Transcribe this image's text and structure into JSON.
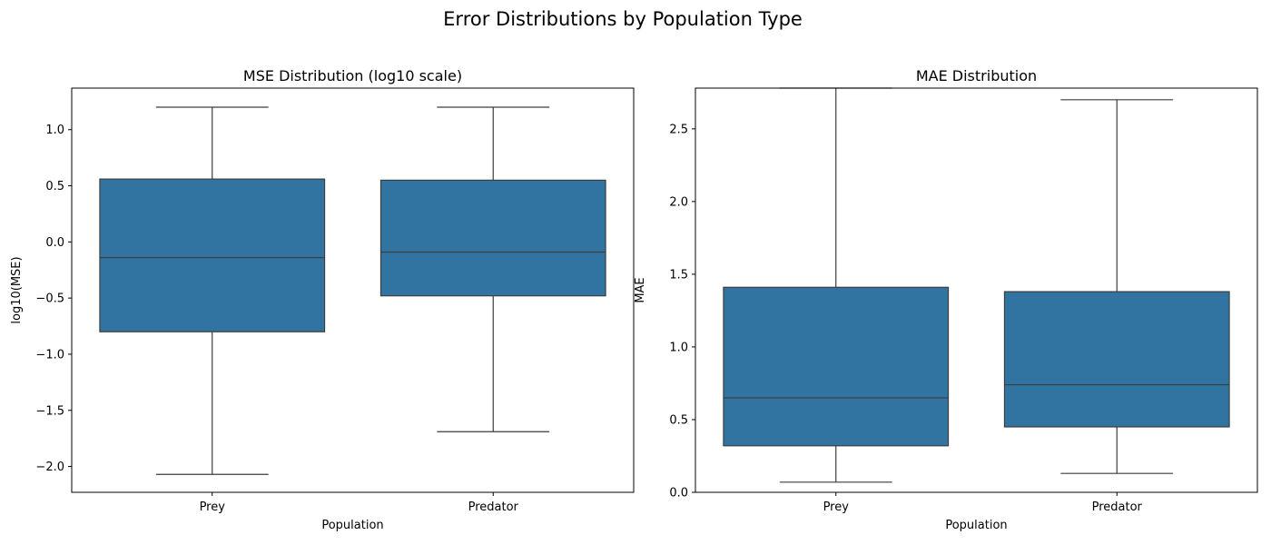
{
  "figure": {
    "suptitle": "Error Distributions by Population Type"
  },
  "chart_data": [
    {
      "type": "box",
      "title": "MSE Distribution (log10 scale)",
      "xlabel": "Population",
      "ylabel": "log10(MSE)",
      "categories": [
        "Prey",
        "Predator"
      ],
      "ylim": [
        -2.23,
        1.37
      ],
      "yticks": [
        -2.0,
        -1.5,
        -1.0,
        -0.5,
        0.0,
        0.5,
        1.0
      ],
      "ytick_labels": [
        "−2.0",
        "−1.5",
        "−1.0",
        "−0.5",
        "0.0",
        "0.5",
        "1.0"
      ],
      "boxes": [
        {
          "category": "Prey",
          "whisker_low": -2.07,
          "q1": -0.8,
          "median": -0.14,
          "q3": 0.56,
          "whisker_high": 1.2
        },
        {
          "category": "Predator",
          "whisker_low": -1.69,
          "q1": -0.48,
          "median": -0.09,
          "q3": 0.55,
          "whisker_high": 1.2
        }
      ],
      "color": "#3274a1",
      "grid": false,
      "legend": "none"
    },
    {
      "type": "box",
      "title": "MAE Distribution",
      "xlabel": "Population",
      "ylabel": "MAE",
      "categories": [
        "Prey",
        "Predator"
      ],
      "ylim": [
        0.0,
        2.78
      ],
      "yticks": [
        0.0,
        0.5,
        1.0,
        1.5,
        2.0,
        2.5
      ],
      "ytick_labels": [
        "0.0",
        "0.5",
        "1.0",
        "1.5",
        "2.0",
        "2.5"
      ],
      "boxes": [
        {
          "category": "Prey",
          "whisker_low": 0.07,
          "q1": 0.32,
          "median": 0.65,
          "q3": 1.41,
          "whisker_high": 2.78
        },
        {
          "category": "Predator",
          "whisker_low": 0.13,
          "q1": 0.45,
          "median": 0.74,
          "q3": 1.38,
          "whisker_high": 2.7
        }
      ],
      "color": "#3274a1",
      "grid": false,
      "legend": "none"
    }
  ]
}
